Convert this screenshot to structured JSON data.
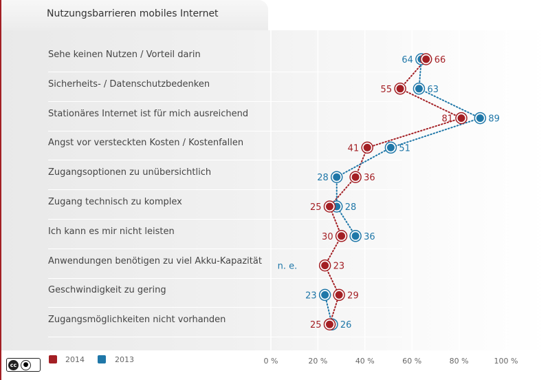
{
  "title": "Nutzungsbarrieren mobiles Internet",
  "legend": [
    {
      "label": "2014",
      "color": "#a31f24"
    },
    {
      "label": "2013",
      "color": "#1f77a8"
    }
  ],
  "license_icon": "creative-commons-by-icon",
  "chart_data": {
    "type": "scatter",
    "title": "Nutzungsbarrieren mobiles Internet",
    "xlim": [
      0,
      100
    ],
    "xticks": [
      "0 %",
      "20 %",
      "40 %",
      "60 %",
      "80 %",
      "100 %"
    ],
    "categories": [
      "Sehe keinen Nutzen / Vorteil darin",
      "Sicherheits- / Datenschutzbedenken",
      "Stationäres Internet ist für mich ausreichend",
      "Angst vor versteckten Kosten / Kostenfallen",
      "Zugangsoptionen zu unübersichtlich",
      "Zugang technisch zu komplex",
      "Ich kann es mir nicht leisten",
      "Anwendungen benötigen zu viel Akku-Kapazität",
      "Geschwindigkeit zu gering",
      "Zugangsmöglichkeiten nicht vorhanden"
    ],
    "series": [
      {
        "name": "2014",
        "color": "#a31f24",
        "values": [
          66,
          55,
          81,
          41,
          36,
          25,
          30,
          23,
          29,
          25
        ]
      },
      {
        "name": "2013",
        "color": "#1f77a8",
        "values": [
          64,
          63,
          89,
          51,
          28,
          28,
          36,
          null,
          23,
          26
        ]
      }
    ],
    "na_label": "n. e."
  }
}
